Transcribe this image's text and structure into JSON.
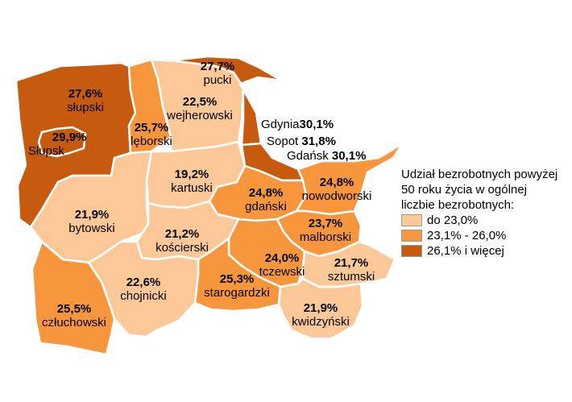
{
  "colors": {
    "low": "#fcc897",
    "mid": "#f7963c",
    "high": "#c65b0f",
    "outline": "#ffffff"
  },
  "regions": [
    {
      "name": "słupski",
      "value": "27,6%",
      "class": "high"
    },
    {
      "name": "pucki",
      "value": "27,7%",
      "class": "high"
    },
    {
      "name": "lęborski",
      "value": "25,7%",
      "class": "mid"
    },
    {
      "name": "wejherowski",
      "value": "22,5%",
      "class": "low"
    },
    {
      "name": "Słupsk",
      "value": "29,9%",
      "class": "high"
    },
    {
      "name": "kartuski",
      "value": "19,2%",
      "class": "low"
    },
    {
      "name": "gdański",
      "value": "24,8%",
      "class": "mid"
    },
    {
      "name": "nowodworski",
      "value": "24,8%",
      "class": "mid"
    },
    {
      "name": "bytowski",
      "value": "21,9%",
      "class": "low"
    },
    {
      "name": "kościerski",
      "value": "21,2%",
      "class": "low"
    },
    {
      "name": "malborski",
      "value": "23,7%",
      "class": "mid"
    },
    {
      "name": "tczewski",
      "value": "24,0%",
      "class": "mid"
    },
    {
      "name": "sztumski",
      "value": "21,7%",
      "class": "low"
    },
    {
      "name": "starogardzki",
      "value": "25,3%",
      "class": "mid"
    },
    {
      "name": "chojnicki",
      "value": "22,6%",
      "class": "low"
    },
    {
      "name": "kwidzyński",
      "value": "21,9%",
      "class": "low"
    },
    {
      "name": "człuchowski",
      "value": "25,5%",
      "class": "mid"
    }
  ],
  "cities": [
    {
      "name": "Gdynia",
      "value": "30,1%"
    },
    {
      "name": "Sopot",
      "value": "31,8%"
    },
    {
      "name": "Gdańsk",
      "value": "30,1%"
    }
  ],
  "legend": {
    "title": "Udział bezrobotnych powyżej 50 roku życia w ogólnej liczbie bezrobotnych:",
    "items": [
      {
        "label": "do 23,0%",
        "class": "low"
      },
      {
        "label": "23,1% - 26,0%",
        "class": "mid"
      },
      {
        "label": "26,1% i więcej",
        "class": "high"
      }
    ]
  }
}
